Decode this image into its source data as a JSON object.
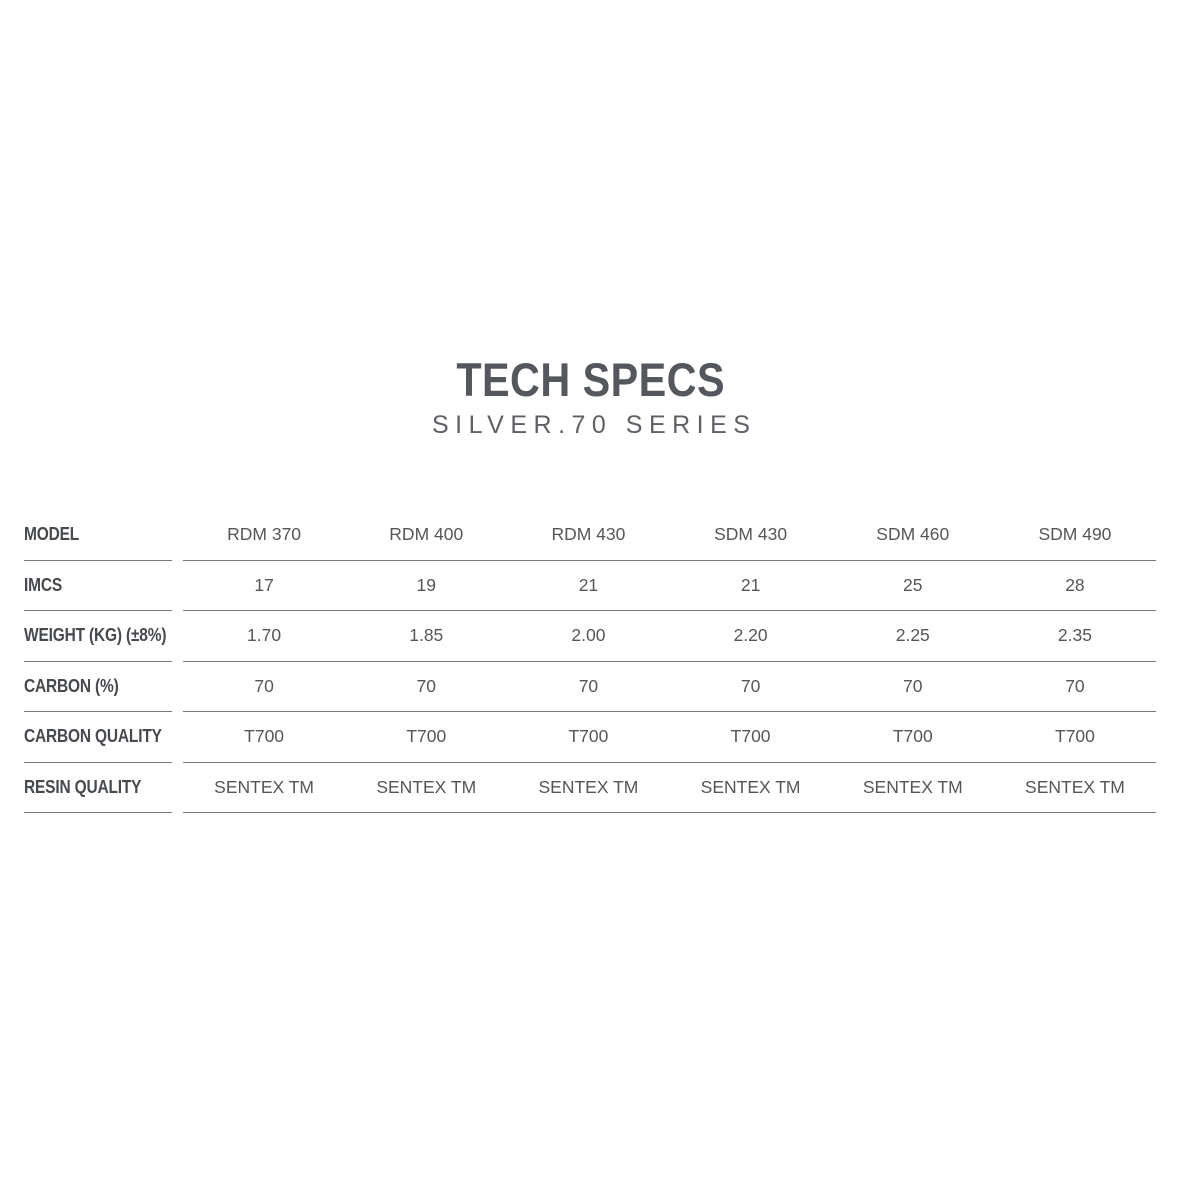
{
  "header": {
    "title": "TECH SPECS",
    "subtitle": "SILVER.70 SERIES"
  },
  "chart_data": {
    "type": "table",
    "title": "TECH SPECS",
    "subtitle": "SILVER.70 SERIES",
    "columns": [
      "RDM 370",
      "RDM 400",
      "RDM 430",
      "SDM 430",
      "SDM 460",
      "SDM 490"
    ],
    "rows": [
      {
        "label": "MODEL",
        "values": [
          "RDM 370",
          "RDM 400",
          "RDM 430",
          "SDM 430",
          "SDM 460",
          "SDM 490"
        ]
      },
      {
        "label": "IMCS",
        "values": [
          "17",
          "19",
          "21",
          "21",
          "25",
          "28"
        ]
      },
      {
        "label": "WEIGHT (KG) (±8%)",
        "values": [
          "1.70",
          "1.85",
          "2.00",
          "2.20",
          "2.25",
          "2.35"
        ]
      },
      {
        "label": "CARBON (%)",
        "values": [
          "70",
          "70",
          "70",
          "70",
          "70",
          "70"
        ]
      },
      {
        "label": "CARBON QUALITY",
        "values": [
          "T700",
          "T700",
          "T700",
          "T700",
          "T700",
          "T700"
        ]
      },
      {
        "label": "RESIN QUALITY",
        "values": [
          "SENTEX TM",
          "SENTEX TM",
          "SENTEX TM",
          "SENTEX TM",
          "SENTEX TM",
          "SENTEX TM"
        ]
      }
    ],
    "layout": {
      "first_row_is_column_header": true,
      "grid": "horizontal-rules-only",
      "legend": "none"
    }
  },
  "colors": {
    "background": "#ffffff",
    "title_text": "#54575c",
    "subtitle_text": "#5d6064",
    "label_text": "#46494d",
    "value_text": "#54565a",
    "rule_line": "#77797c"
  }
}
